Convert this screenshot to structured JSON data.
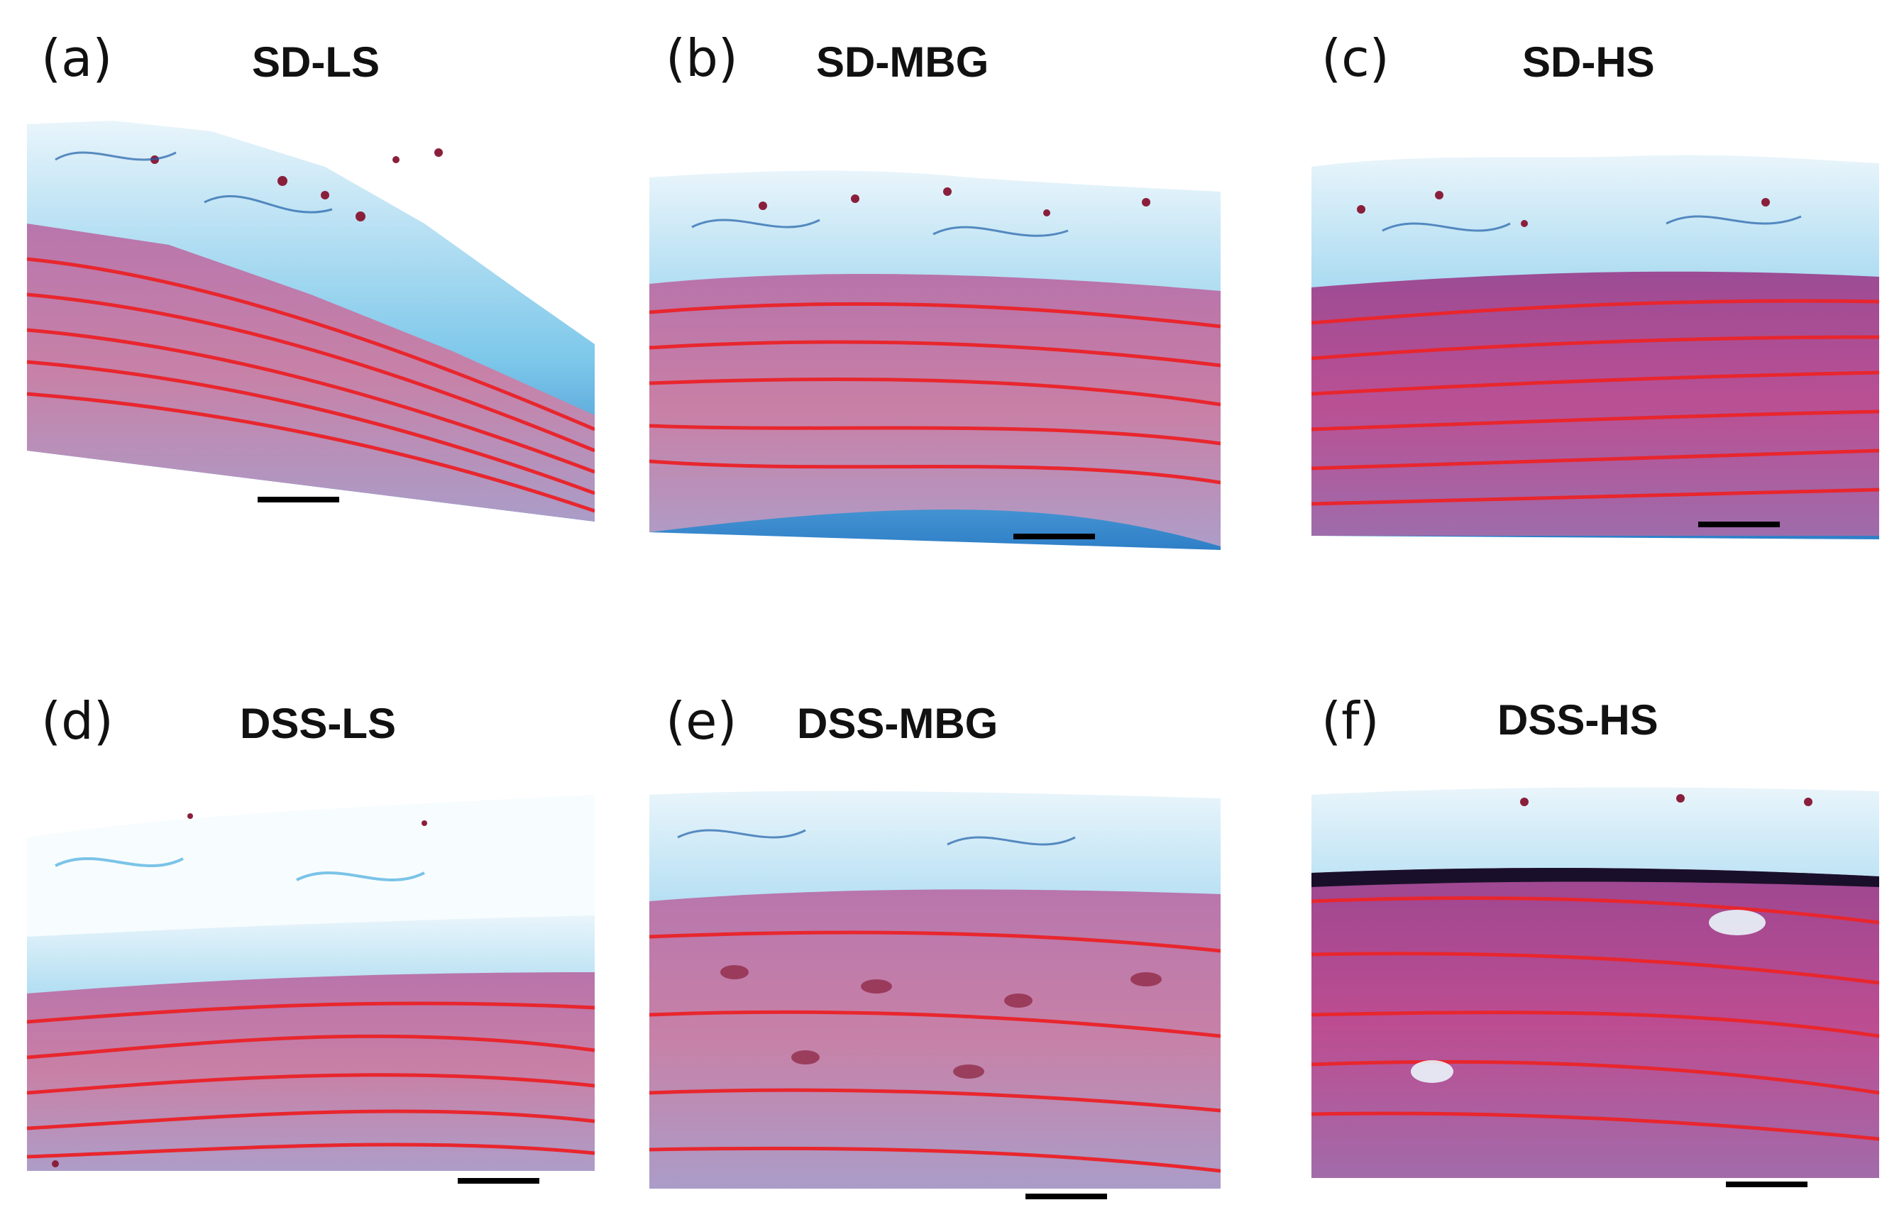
{
  "panels": [
    {
      "letter": "(a)",
      "title": "SD-LS"
    },
    {
      "letter": "(b)",
      "title": "SD-MBG"
    },
    {
      "letter": "(c)",
      "title": "SD-HS"
    },
    {
      "letter": "(d)",
      "title": "DSS-LS"
    },
    {
      "letter": "(e)",
      "title": "DSS-MBG"
    },
    {
      "letter": "(f)",
      "title": "DSS-HS"
    }
  ],
  "colors": {
    "adventitia_blue": "#2f9fd6",
    "collagen_light": "#cfe8f5",
    "media_pink": "#c86a9a",
    "elastic_red": "#e8262e",
    "nuclei": "#8a1f3c",
    "scale_bar": "#000000"
  }
}
